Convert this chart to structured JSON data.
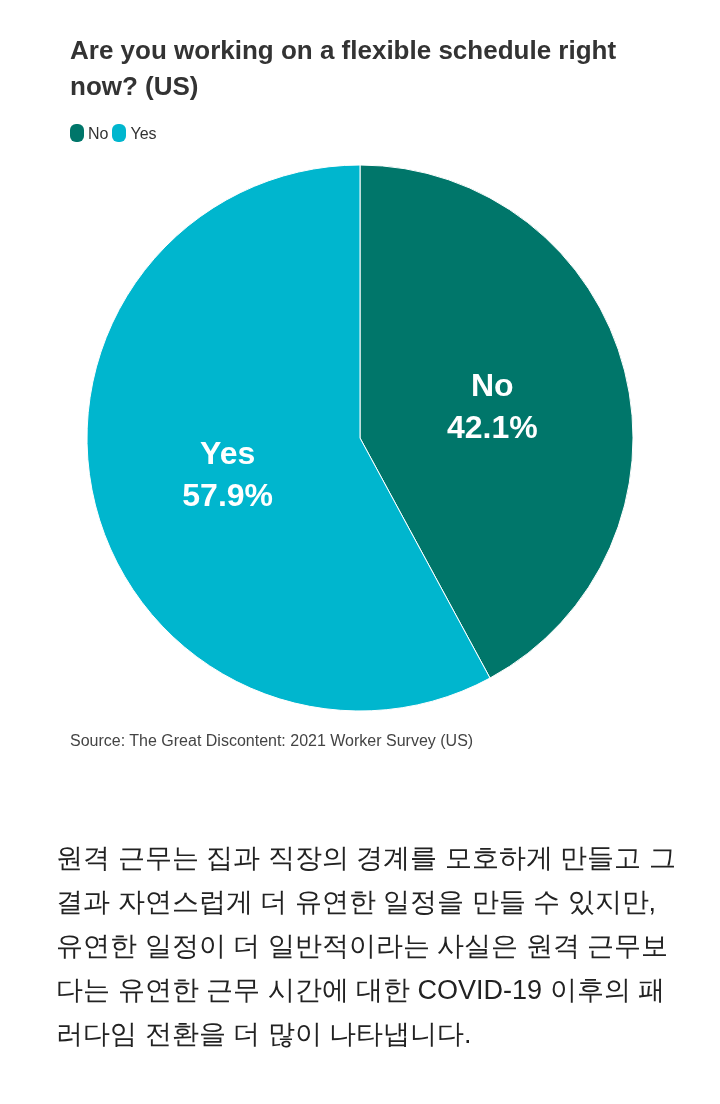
{
  "chart_data": {
    "type": "pie",
    "title": "Are you working on a flexible schedule right now? (US)",
    "categories": [
      "No",
      "Yes"
    ],
    "values": [
      42.1,
      57.9
    ],
    "colors": [
      "#00766a",
      "#00b6ce"
    ],
    "legend": "top left",
    "value_labels": [
      "42.1%",
      "57.9%"
    ],
    "annotations": [
      "Source: The Great Discontent: 2021 Worker Survey (US)",
      "원격 근무는 집과 직장의 경계를 모호하게 만들고 그 결과 자연스럽게 더 유연한 일정을 만들 수 있지만, 유연한 일정이 더 일반적이라는 사실은 원격 근무보다는 유연한 근무 시간에 대한 COVID-19 이후의 패러다임 전환을 더 많이 나타냅니다."
    ]
  }
}
